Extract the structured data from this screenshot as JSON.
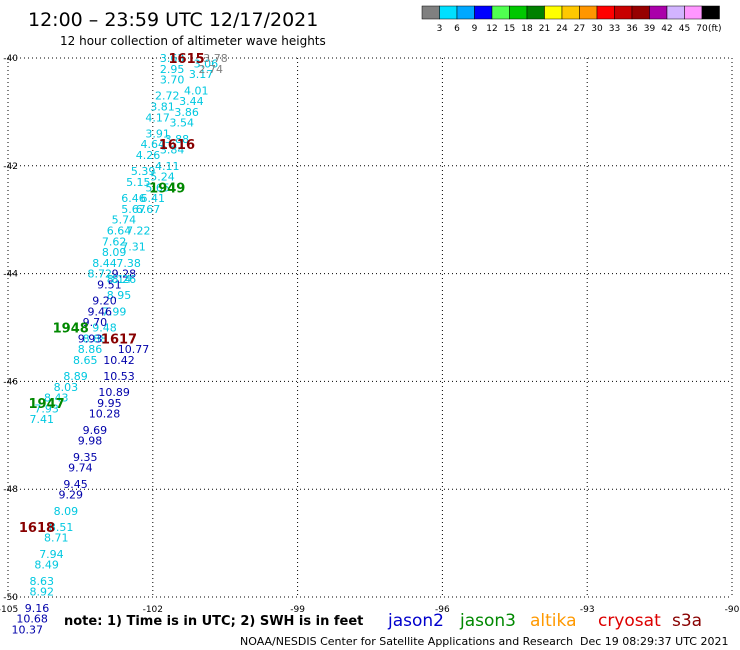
{
  "header": {
    "title": "12:00 – 23:59 UTC 12/17/2021",
    "subtitle": "12 hour collection of altimeter wave heights"
  },
  "scale": {
    "unit": "(ft)",
    "labels": [
      "3",
      "6",
      "9",
      "12",
      "15",
      "18",
      "21",
      "24",
      "27",
      "30",
      "33",
      "36",
      "39",
      "42",
      "45",
      "70"
    ],
    "colors": [
      "#808080",
      "#00e0ff",
      "#00a8ff",
      "#0000ff",
      "#50ff50",
      "#00c800",
      "#008000",
      "#ffff00",
      "#ffc800",
      "#ff9600",
      "#ff0000",
      "#c80000",
      "#960000",
      "#aa00aa",
      "#d2b4ff",
      "#ff96ff",
      "#000000"
    ]
  },
  "footer": {
    "note": "note:  1) Time is in UTC;  2) SWH is in feet",
    "credit": "NOAA/NESDIS Center for Satellite Applications and Research",
    "timestamp": "Dec 19 08:29:37 UTC 2021"
  },
  "legend": [
    {
      "name": "jason2",
      "color": "#0000cc"
    },
    {
      "name": "jason3",
      "color": "#008800"
    },
    {
      "name": "altika",
      "color": "#ff9900"
    },
    {
      "name": "cryosat",
      "color": "#dd0000"
    },
    {
      "name": "s3a",
      "color": "#880000"
    }
  ],
  "chart_data": {
    "type": "scatter",
    "title": "12:00 – 23:59 UTC 12/17/2021",
    "subtitle": "12 hour collection of altimeter wave heights",
    "xlim": [
      -105,
      -90
    ],
    "ylim": [
      -50,
      -40
    ],
    "x_ticks": [
      -105,
      -102,
      -99,
      -96,
      -93,
      -90
    ],
    "y_ticks": [
      -40,
      -42,
      -44,
      -46,
      -48,
      -50
    ],
    "grid": true,
    "times": [
      {
        "label": "1615",
        "lon": -101.3,
        "lat": -40.0,
        "color": "#880000"
      },
      {
        "label": "1616",
        "lon": -101.5,
        "lat": -41.6,
        "color": "#880000"
      },
      {
        "label": "1949",
        "lon": -101.7,
        "lat": -42.4,
        "color": "#008800"
      },
      {
        "label": "1617",
        "lon": -102.7,
        "lat": -45.2,
        "color": "#880000"
      },
      {
        "label": "1948",
        "lon": -103.7,
        "lat": -45.0,
        "color": "#008800"
      },
      {
        "label": "1947",
        "lon": -104.2,
        "lat": -46.4,
        "color": "#008800"
      },
      {
        "label": "1618",
        "lon": -104.4,
        "lat": -48.7,
        "color": "#880000"
      }
    ],
    "series": [
      {
        "name": "track A",
        "color": "#00c8e0",
        "points": [
          [
            -101.6,
            -40.0,
            3.63
          ],
          [
            -101.6,
            -40.2,
            2.95
          ],
          [
            -101.6,
            -40.4,
            3.7
          ],
          [
            -101.7,
            -40.7,
            2.72
          ],
          [
            -101.8,
            -40.9,
            3.81
          ],
          [
            -101.9,
            -41.1,
            4.17
          ],
          [
            -101.9,
            -41.4,
            3.91
          ],
          [
            -102.0,
            -41.6,
            4.64
          ],
          [
            -102.1,
            -41.8,
            4.26
          ],
          [
            -102.2,
            -42.1,
            5.39
          ],
          [
            -102.3,
            -42.3,
            5.15
          ],
          [
            -102.4,
            -42.6,
            6.46
          ],
          [
            -102.4,
            -42.8,
            5.67
          ],
          [
            -102.6,
            -43.0,
            5.74
          ],
          [
            -102.7,
            -43.2,
            6.64
          ],
          [
            -102.8,
            -43.4,
            7.62
          ],
          [
            -102.8,
            -43.6,
            8.09
          ],
          [
            -103.0,
            -43.8,
            8.44
          ],
          [
            -103.1,
            -44.0,
            8.72
          ],
          [
            -102.7,
            -44.1,
            8.14
          ],
          [
            -102.7,
            -44.4,
            8.95
          ],
          [
            -102.8,
            -44.7,
            7.99
          ],
          [
            -103.0,
            -45.0,
            9.48
          ],
          [
            -103.2,
            -45.2,
            8.88
          ],
          [
            -103.3,
            -45.4,
            8.86
          ],
          [
            -103.4,
            -45.6,
            8.65
          ],
          [
            -103.6,
            -45.9,
            8.89
          ],
          [
            -103.8,
            -46.1,
            8.03
          ],
          [
            -104.0,
            -46.3,
            8.43
          ],
          [
            -104.2,
            -46.5,
            7.93
          ],
          [
            -104.3,
            -46.7,
            7.41
          ]
        ]
      },
      {
        "name": "track B",
        "color": "#0000aa",
        "points": [
          [
            -102.6,
            -44.0,
            9.28
          ],
          [
            -102.9,
            -44.2,
            9.51
          ],
          [
            -103.0,
            -44.5,
            9.2
          ],
          [
            -103.1,
            -44.7,
            9.46
          ],
          [
            -103.2,
            -44.9,
            9.7
          ],
          [
            -103.3,
            -45.2,
            9.93
          ],
          [
            -102.4,
            -45.4,
            10.77
          ],
          [
            -102.7,
            -45.6,
            10.42
          ],
          [
            -102.7,
            -45.9,
            10.53
          ],
          [
            -102.8,
            -46.2,
            10.89
          ],
          [
            -102.9,
            -46.4,
            9.95
          ],
          [
            -103.0,
            -46.6,
            10.28
          ],
          [
            -103.2,
            -46.9,
            9.69
          ],
          [
            -103.3,
            -47.1,
            9.98
          ],
          [
            -103.4,
            -47.4,
            9.35
          ],
          [
            -103.5,
            -47.6,
            9.74
          ],
          [
            -103.6,
            -47.9,
            9.45
          ],
          [
            -103.7,
            -48.1,
            9.29
          ]
        ]
      },
      {
        "name": "track C",
        "color": "#00c8e0",
        "points": [
          [
            -103.8,
            -48.4,
            8.09
          ],
          [
            -103.9,
            -48.7,
            8.51
          ],
          [
            -104.0,
            -48.9,
            8.71
          ],
          [
            -104.1,
            -49.2,
            7.94
          ],
          [
            -104.2,
            -49.4,
            8.49
          ],
          [
            -104.3,
            -49.7,
            8.63
          ],
          [
            -104.3,
            -49.9,
            8.92
          ]
        ]
      },
      {
        "name": "track D",
        "color": "#0000aa",
        "points": [
          [
            -104.4,
            -50.2,
            9.16
          ],
          [
            -104.5,
            -50.4,
            10.68
          ],
          [
            -104.6,
            -50.6,
            10.37
          ]
        ]
      },
      {
        "name": "track E",
        "color": "#00c8e0",
        "points": [
          [
            -100.9,
            -40.1,
            3.06
          ],
          [
            -101.0,
            -40.3,
            3.17
          ],
          [
            -101.1,
            -40.6,
            4.01
          ],
          [
            -101.2,
            -40.8,
            3.44
          ],
          [
            -101.3,
            -41.0,
            3.86
          ],
          [
            -101.4,
            -41.2,
            3.54
          ],
          [
            -101.5,
            -41.5,
            3.88
          ],
          [
            -101.6,
            -41.7,
            3.84
          ],
          [
            -101.7,
            -42.0,
            4.11
          ],
          [
            -101.8,
            -42.2,
            5.24
          ],
          [
            -101.9,
            -42.4,
            5.65
          ],
          [
            -102.0,
            -42.6,
            6.41
          ],
          [
            -102.1,
            -42.8,
            6.67
          ],
          [
            -102.3,
            -43.2,
            7.22
          ],
          [
            -102.4,
            -43.5,
            7.31
          ],
          [
            -102.5,
            -43.8,
            7.38
          ],
          [
            -102.6,
            -44.1,
            8.26
          ]
        ]
      },
      {
        "name": "track F",
        "color": "#808080",
        "points": [
          [
            -100.7,
            -40.0,
            3.78
          ],
          [
            -100.8,
            -40.2,
            2.74
          ]
        ]
      }
    ]
  }
}
